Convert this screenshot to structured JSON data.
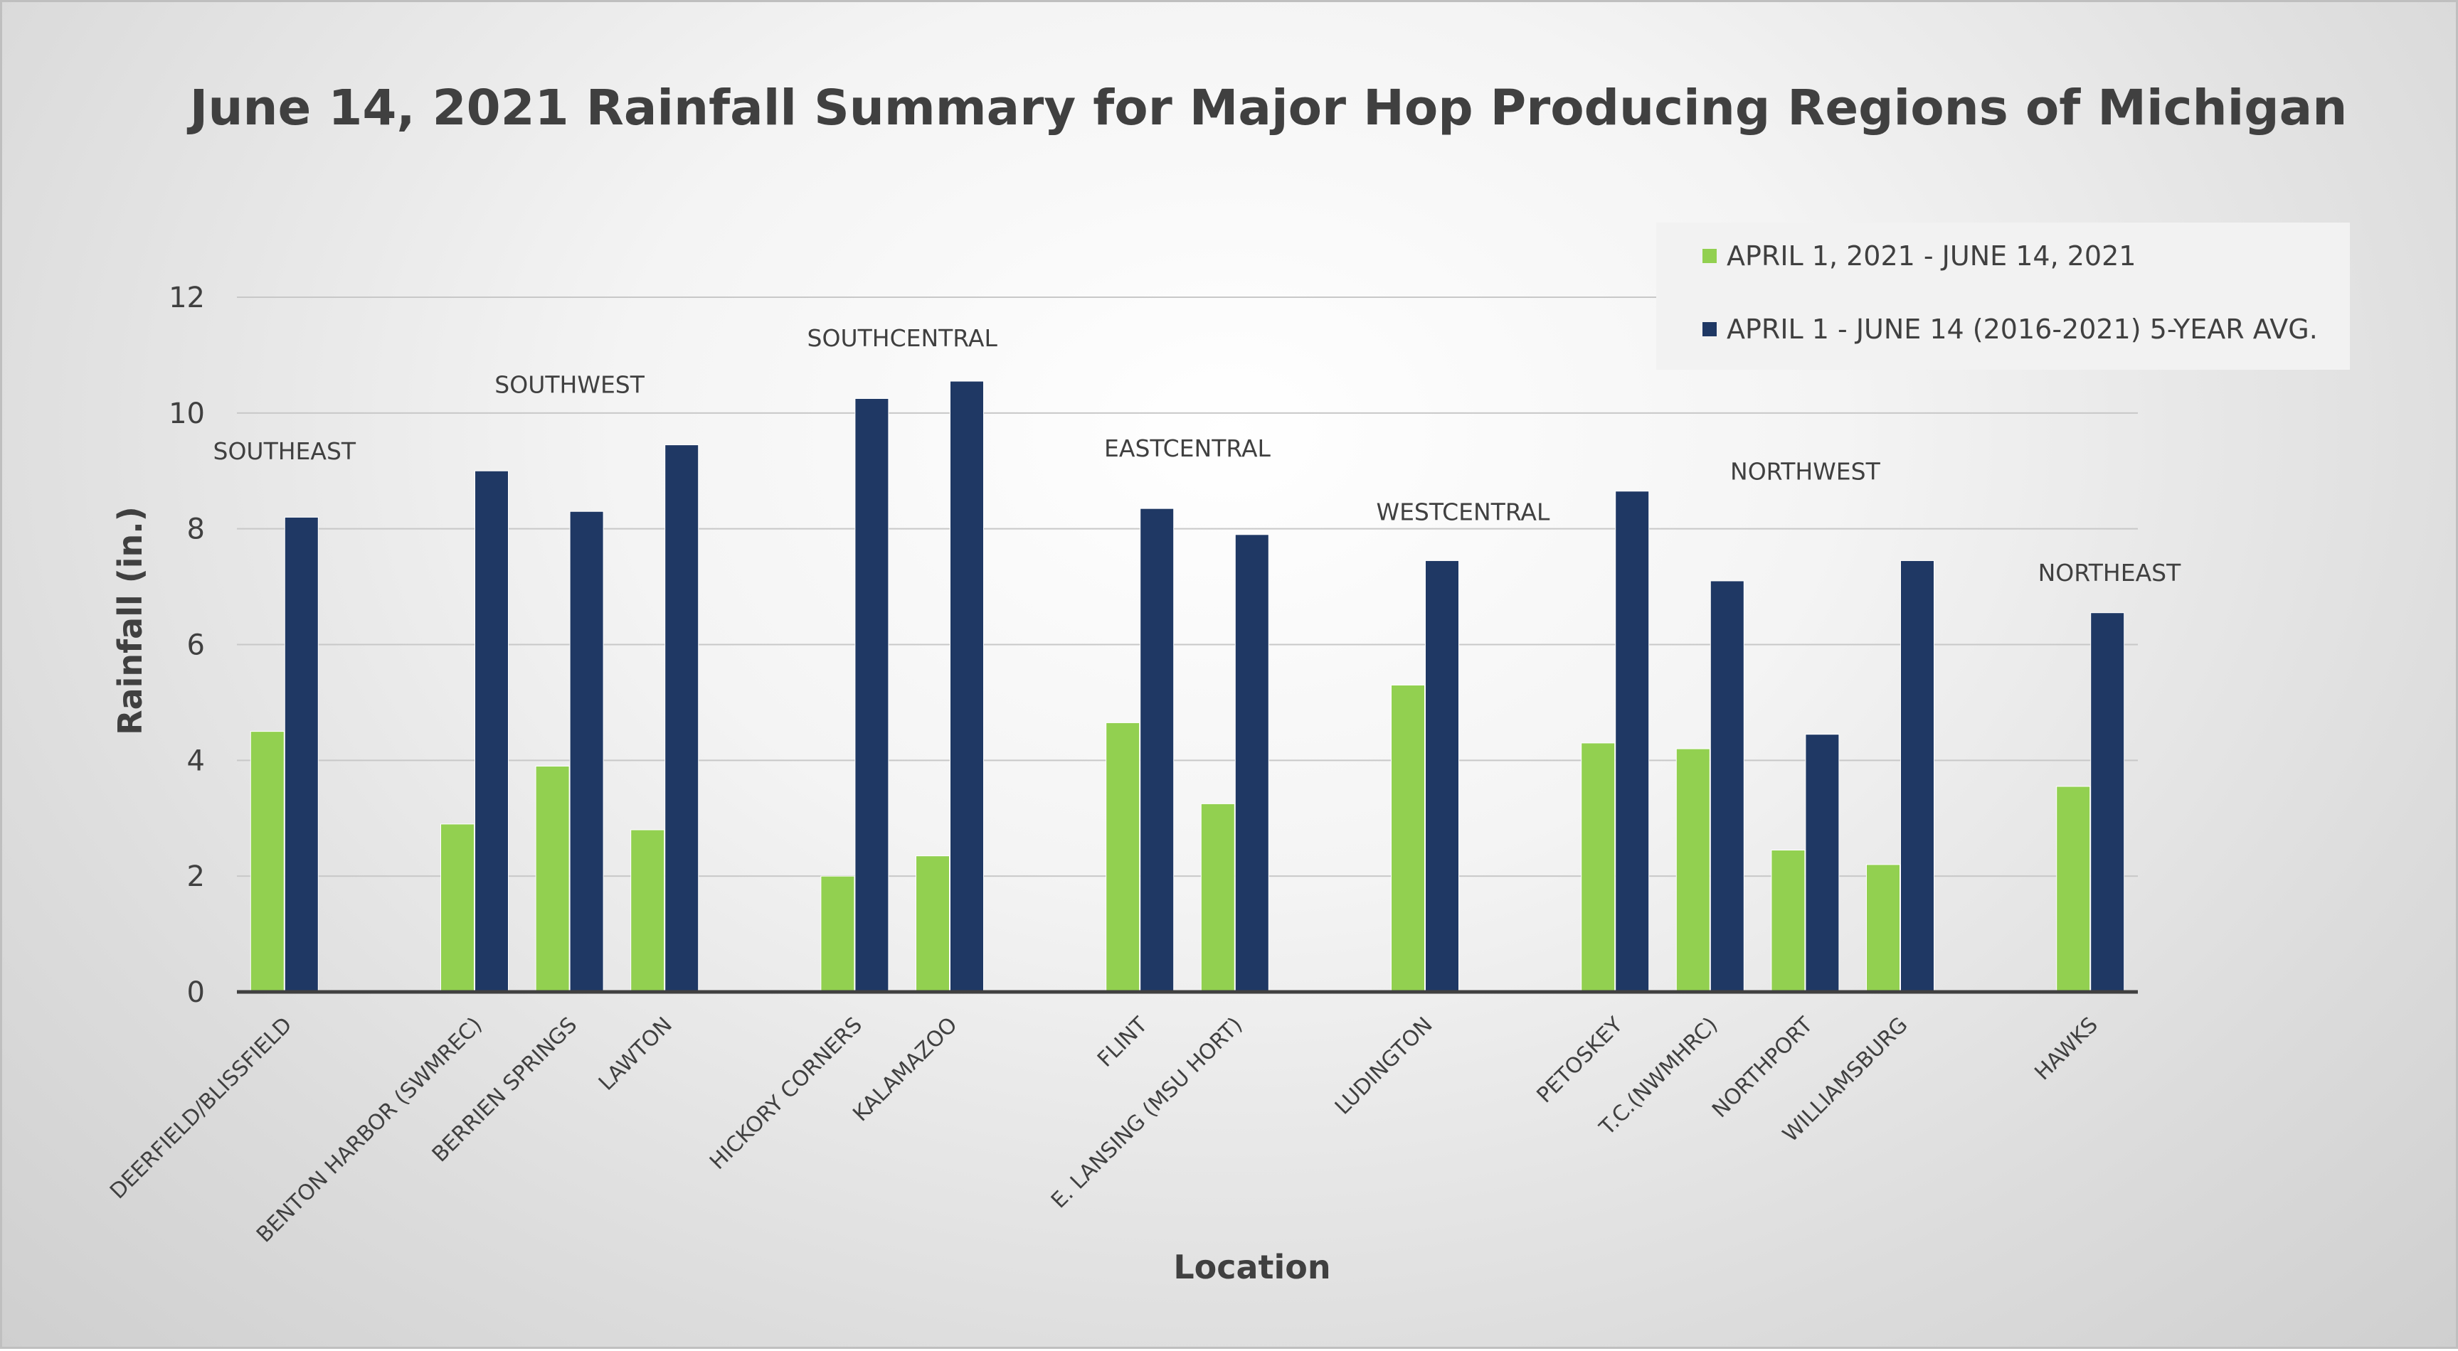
{
  "colors": {
    "current": "#92d050",
    "average": "#1f3864",
    "grid": "#c8c8c8",
    "axis": "#404040"
  },
  "chart_data": {
    "type": "bar",
    "title": "June 14, 2021 Rainfall Summary for Major Hop Producing Regions of Michigan",
    "xlabel": "Location",
    "ylabel": "Rainfall (in.)",
    "ylim": [
      0,
      12
    ],
    "yticks": [
      0,
      2,
      4,
      6,
      8,
      10,
      12
    ],
    "grid": true,
    "legend_position": "top-right",
    "categories": [
      "DEERFIELD/BLISSFIELD",
      "",
      "BENTON HARBOR (SWMREC)",
      "BERRIEN SPRINGS",
      "LAWTON",
      "",
      "HICKORY CORNERS",
      "KALAMAZOO",
      "",
      "FLINT",
      "E. LANSING (MSU HORT)",
      "",
      "LUDINGTON",
      "",
      "PETOSKEY",
      "T.C.(NWMHRC)",
      "NORTHPORT",
      "WILLIAMSBURG",
      "",
      "HAWKS"
    ],
    "series": [
      {
        "name": "APRIL 1, 2021 - JUNE 14, 2021",
        "values": [
          4.5,
          null,
          2.9,
          3.9,
          2.8,
          null,
          2.0,
          2.35,
          null,
          4.65,
          3.25,
          null,
          5.3,
          null,
          4.3,
          4.2,
          2.45,
          2.2,
          null,
          3.55
        ]
      },
      {
        "name": "APRIL 1 - JUNE 14 (2016-2021) 5-YEAR AVG.",
        "values": [
          8.2,
          null,
          9.0,
          8.3,
          9.45,
          null,
          10.25,
          10.55,
          null,
          8.35,
          7.9,
          null,
          7.45,
          null,
          8.65,
          7.1,
          4.45,
          7.45,
          null,
          6.55
        ]
      }
    ],
    "annotations": [
      {
        "text": "SOUTHEAST",
        "category_index": 0,
        "y": 9.2
      },
      {
        "text": "SOUTHWEST",
        "category_index": 3,
        "y": 10.35
      },
      {
        "text": "SOUTHCENTRAL",
        "category_index": 6.5,
        "y": 11.15
      },
      {
        "text": "EASTCENTRAL",
        "category_index": 9.5,
        "y": 9.25
      },
      {
        "text": "WESTCENTRAL",
        "category_index": 12.4,
        "y": 8.15
      },
      {
        "text": "NORTHWEST",
        "category_index": 16,
        "y": 8.85
      },
      {
        "text": "NORTHEAST",
        "category_index": 19.2,
        "y": 7.1
      }
    ]
  }
}
